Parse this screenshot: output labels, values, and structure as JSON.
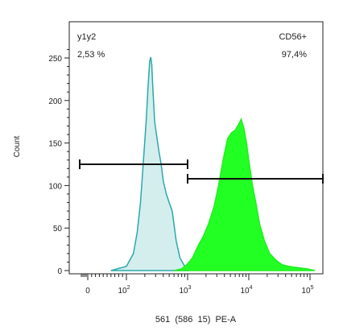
{
  "chart_data": {
    "type": "area",
    "xlabel": "561  (586  15)  PE-A",
    "ylabel": "Count",
    "x_scale": "biexponential",
    "ylim": [
      0,
      270
    ],
    "y_ticks": [
      0,
      50,
      100,
      150,
      200,
      250
    ],
    "x_ticks": [
      {
        "value": 0,
        "label": "0",
        "exp": ""
      },
      {
        "value": 100,
        "label": "10",
        "exp": "2"
      },
      {
        "value": 1000,
        "label": "10",
        "exp": "3"
      },
      {
        "value": 10000,
        "label": "10",
        "exp": "4"
      },
      {
        "value": 100000,
        "label": "10",
        "exp": "5"
      }
    ],
    "grid": false,
    "series": [
      {
        "color": "#d4eeee",
        "stroke": "#2aa9a9",
        "x": [
          60,
          100,
          130,
          150,
          170,
          190,
          210,
          225,
          240,
          250,
          260,
          270,
          290,
          310,
          340,
          370,
          400,
          450,
          500,
          560,
          650,
          750,
          900,
          1000
        ],
        "y": [
          0,
          5,
          20,
          45,
          80,
          130,
          175,
          215,
          246,
          251,
          242,
          215,
          175,
          160,
          140,
          125,
          105,
          90,
          80,
          70,
          35,
          15,
          5,
          0
        ]
      },
      {
        "color": "#22ff22",
        "stroke": "#22ee22",
        "x": [
          600,
          800,
          1000,
          1200,
          1500,
          1800,
          2200,
          2700,
          3200,
          3800,
          4500,
          5200,
          6000,
          6800,
          7500,
          8300,
          9200,
          10000,
          11500,
          13000,
          15000,
          18000,
          22000,
          28000,
          35000,
          45000,
          55000,
          70000,
          90000,
          120000
        ],
        "y": [
          0,
          2,
          8,
          15,
          30,
          40,
          55,
          75,
          100,
          130,
          155,
          162,
          165,
          172,
          178,
          168,
          150,
          130,
          100,
          80,
          55,
          35,
          20,
          12,
          7,
          5,
          4,
          3,
          2,
          0
        ]
      }
    ],
    "gates": [
      {
        "name": "y1y2",
        "value": "2,53 %",
        "x_from": -50,
        "x_to": 1000,
        "y": 125
      },
      {
        "name": "CD56+",
        "value": "97,4%",
        "x_from": 1000,
        "x_to": 200000,
        "y": 108
      }
    ]
  }
}
